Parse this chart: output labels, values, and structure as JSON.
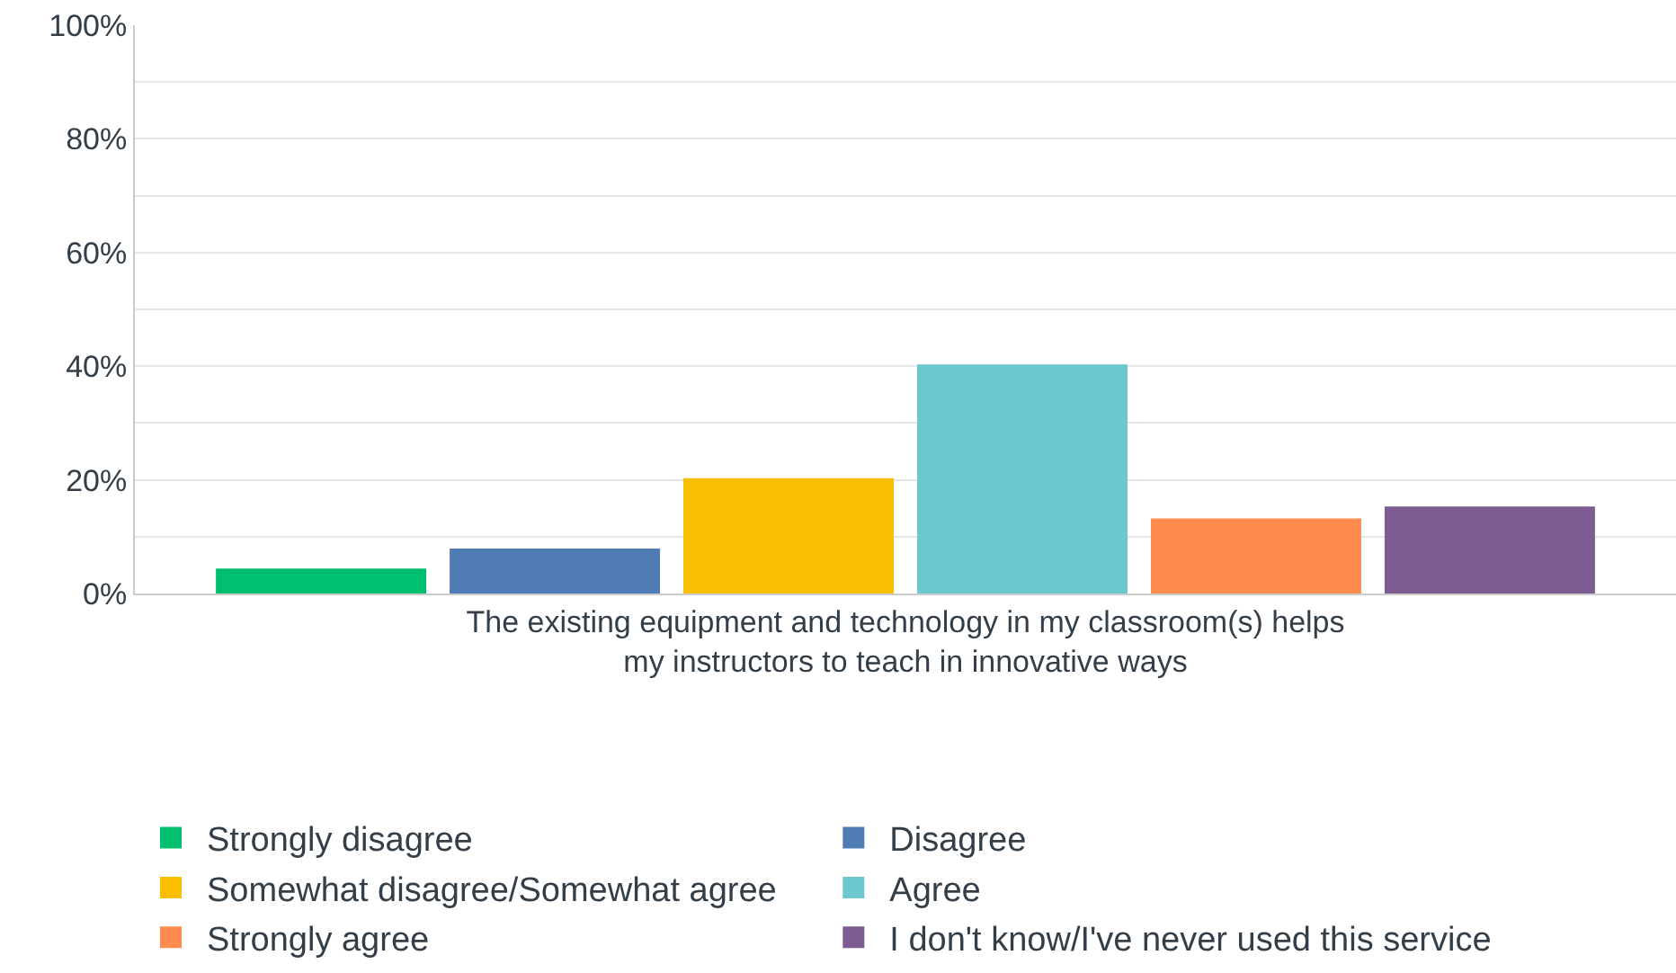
{
  "chart_data": {
    "type": "bar",
    "categories": [
      "The existing equipment and technology in my classroom(s) helps\nmy instructors to teach in innovative ways"
    ],
    "series": [
      {
        "name": "Strongly disagree",
        "color": "#00bf6f",
        "values": [
          4.4
        ]
      },
      {
        "name": "Disagree",
        "color": "#507cb6",
        "values": [
          7.9
        ]
      },
      {
        "name": "Somewhat disagree/Somewhat agree",
        "color": "#f9be00",
        "values": [
          20.3
        ]
      },
      {
        "name": "Agree",
        "color": "#6bc8cd",
        "values": [
          40.3
        ]
      },
      {
        "name": "Strongly agree",
        "color": "#ff8b4f",
        "values": [
          13.2
        ]
      },
      {
        "name": "I don't know/I've never used this service",
        "color": "#7d5c91",
        "values": [
          15.3
        ]
      }
    ],
    "ylim": [
      0,
      100
    ],
    "yticks": [
      {
        "value": 0,
        "label": "0%"
      },
      {
        "value": 10,
        "label": null
      },
      {
        "value": 20,
        "label": "20%"
      },
      {
        "value": 30,
        "label": null
      },
      {
        "value": 40,
        "label": "40%"
      },
      {
        "value": 50,
        "label": null
      },
      {
        "value": 60,
        "label": "60%"
      },
      {
        "value": 70,
        "label": null
      },
      {
        "value": 80,
        "label": "80%"
      },
      {
        "value": 90,
        "label": null
      },
      {
        "value": 100,
        "label": "100%"
      }
    ],
    "grid": "y",
    "legend": "bottom"
  }
}
